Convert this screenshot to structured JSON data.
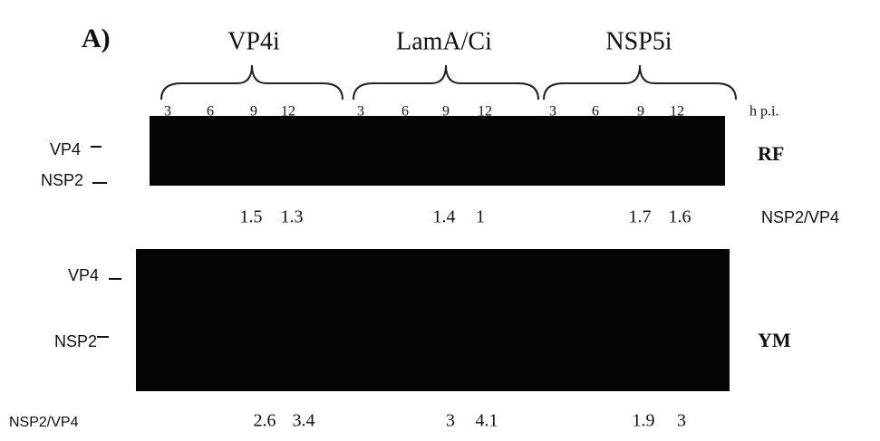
{
  "panel_label": "A)",
  "groups": [
    {
      "label": "VP4i",
      "times": [
        "3",
        "6",
        "9",
        "12"
      ],
      "rf_ratios": [
        "1.5",
        "1.3"
      ],
      "ym_ratios": [
        "2.6",
        "3.4"
      ]
    },
    {
      "label": "LamA/Ci",
      "times": [
        "3",
        "6",
        "9",
        "12"
      ],
      "rf_ratios": [
        "1.4",
        "1"
      ],
      "ym_ratios": [
        "3",
        "4.1"
      ]
    },
    {
      "label": "NSP5i",
      "times": [
        "3",
        "6",
        "9",
        "12"
      ],
      "rf_ratios": [
        "1.7",
        "1.6"
      ],
      "ym_ratios": [
        "1.9",
        "3"
      ]
    }
  ],
  "time_unit": "h p.i.",
  "blots": [
    {
      "label": "RF",
      "bands": [
        "VP4",
        "NSP2"
      ],
      "ratio_label": "NSP2/VP4"
    },
    {
      "label": "YM",
      "bands": [
        "VP4",
        "NSP2"
      ],
      "ratio_label": "NSP2/VP4"
    }
  ]
}
